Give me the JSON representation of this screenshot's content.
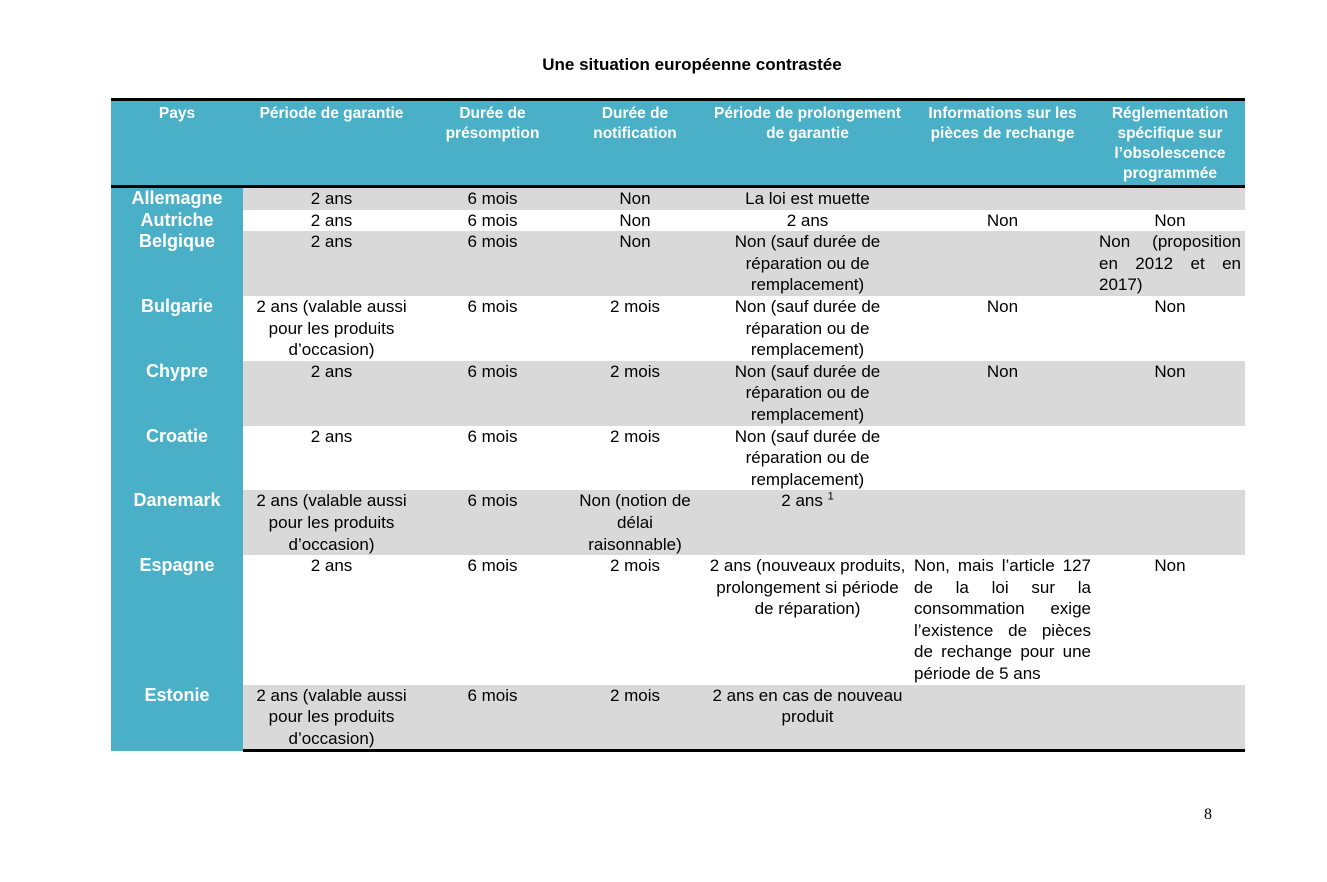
{
  "title": "Une situation européenne contrastée",
  "headers": [
    "Pays",
    "Période de garantie",
    "Durée de présomption",
    "Durée de notification",
    "Période de prolongement de garantie",
    "Informations sur les pièces de rechange",
    "Réglementation spécifique sur l’obsolescence programmée"
  ],
  "rows": [
    {
      "pays": "Allemagne",
      "garantie": "2 ans",
      "presomption": "6 mois",
      "notification": "Non",
      "prolongement": "La loi est muette",
      "pieces": "",
      "reglementation": ""
    },
    {
      "pays": "Autriche",
      "garantie": "2 ans",
      "presomption": "6 mois",
      "notification": "Non",
      "prolongement": "2 ans",
      "pieces": "Non",
      "reglementation": "Non"
    },
    {
      "pays": "Belgique",
      "garantie": "2 ans",
      "presomption": "6 mois",
      "notification": "Non",
      "prolongement": "Non (sauf durée de réparation ou de remplacement)",
      "pieces": "",
      "reglementation": "Non (proposition en 2012 et en 2017)"
    },
    {
      "pays": "Bulgarie",
      "garantie": "2 ans (valable aussi pour les produits d’occasion)",
      "presomption": "6 mois",
      "notification": "2 mois",
      "prolongement": "Non (sauf durée de réparation ou de remplacement)",
      "pieces": "Non",
      "reglementation": "Non"
    },
    {
      "pays": "Chypre",
      "garantie": "2 ans",
      "presomption": "6 mois",
      "notification": "2 mois",
      "prolongement": "Non (sauf durée de réparation ou de remplacement)",
      "pieces": "Non",
      "reglementation": "Non"
    },
    {
      "pays": "Croatie",
      "garantie": "2 ans",
      "presomption": "6 mois",
      "notification": "2 mois",
      "prolongement": "Non (sauf durée de réparation ou de remplacement)",
      "pieces": "",
      "reglementation": ""
    },
    {
      "pays": "Danemark",
      "garantie": "2 ans (valable aussi pour les produits d’occasion)",
      "presomption": "6 mois",
      "notification": "Non (notion de délai raisonnable)",
      "prolongement": "2 ans",
      "prolongement_note": "1",
      "pieces": "",
      "reglementation": ""
    },
    {
      "pays": "Espagne",
      "garantie": "2 ans",
      "presomption": "6 mois",
      "notification": "2 mois",
      "prolongement": "2 ans (nouveaux produits, prolongement si période de réparation)",
      "pieces": "Non, mais l’article 127 de la loi sur la consommation exige l’existence de pièces de rechange pour une période de 5 ans",
      "reglementation": "Non"
    },
    {
      "pays": "Estonie",
      "garantie": "2 ans (valable aussi pour les produits d’occasion)",
      "presomption": "6 mois",
      "notification": "2 mois",
      "prolongement": "2 ans en cas de nouveau produit",
      "pieces": "",
      "reglementation": ""
    }
  ],
  "page_number": "8"
}
